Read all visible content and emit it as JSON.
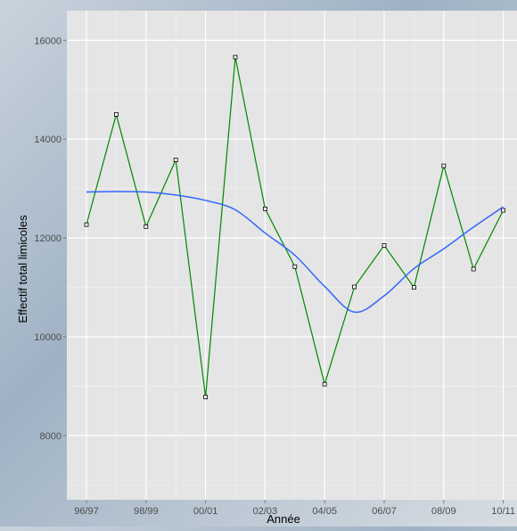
{
  "chart_data": {
    "type": "line",
    "xlabel": "Année",
    "ylabel": "Effectif total limicoles",
    "x_tick_labels": [
      "96/97",
      "98/99",
      "00/01",
      "02/03",
      "04/05",
      "06/07",
      "08/09",
      "10/11"
    ],
    "y_ticks": [
      8000,
      10000,
      12000,
      14000,
      16000
    ],
    "ylim": [
      6700,
      16600
    ],
    "grid": true,
    "colors": {
      "observed": "#008800",
      "smooth": "#3366ff",
      "panel": "#e5e5e5",
      "grid": "#ffffff"
    },
    "series": [
      {
        "kind": "observed",
        "x": [
          "96/97",
          "97/98",
          "98/99",
          "99/00",
          "00/01",
          "01/02",
          "02/03",
          "03/04",
          "04/05",
          "05/06",
          "06/07",
          "07/08",
          "08/09",
          "09/10",
          "10/11"
        ],
        "values": [
          12270,
          14500,
          12230,
          13580,
          8780,
          15660,
          12590,
          11420,
          9040,
          11010,
          11850,
          11000,
          13460,
          11370,
          12560
        ]
      },
      {
        "kind": "smooth",
        "x": [
          "96/97",
          "97/98",
          "98/99",
          "99/00",
          "00/01",
          "01/02",
          "02/03",
          "03/04",
          "04/05",
          "05/06",
          "06/07",
          "07/08",
          "08/09",
          "09/10",
          "10/11"
        ],
        "values": [
          12930,
          12940,
          12930,
          12870,
          12760,
          12570,
          12100,
          11650,
          11020,
          10500,
          10830,
          11380,
          11780,
          12220,
          12630
        ]
      }
    ]
  }
}
